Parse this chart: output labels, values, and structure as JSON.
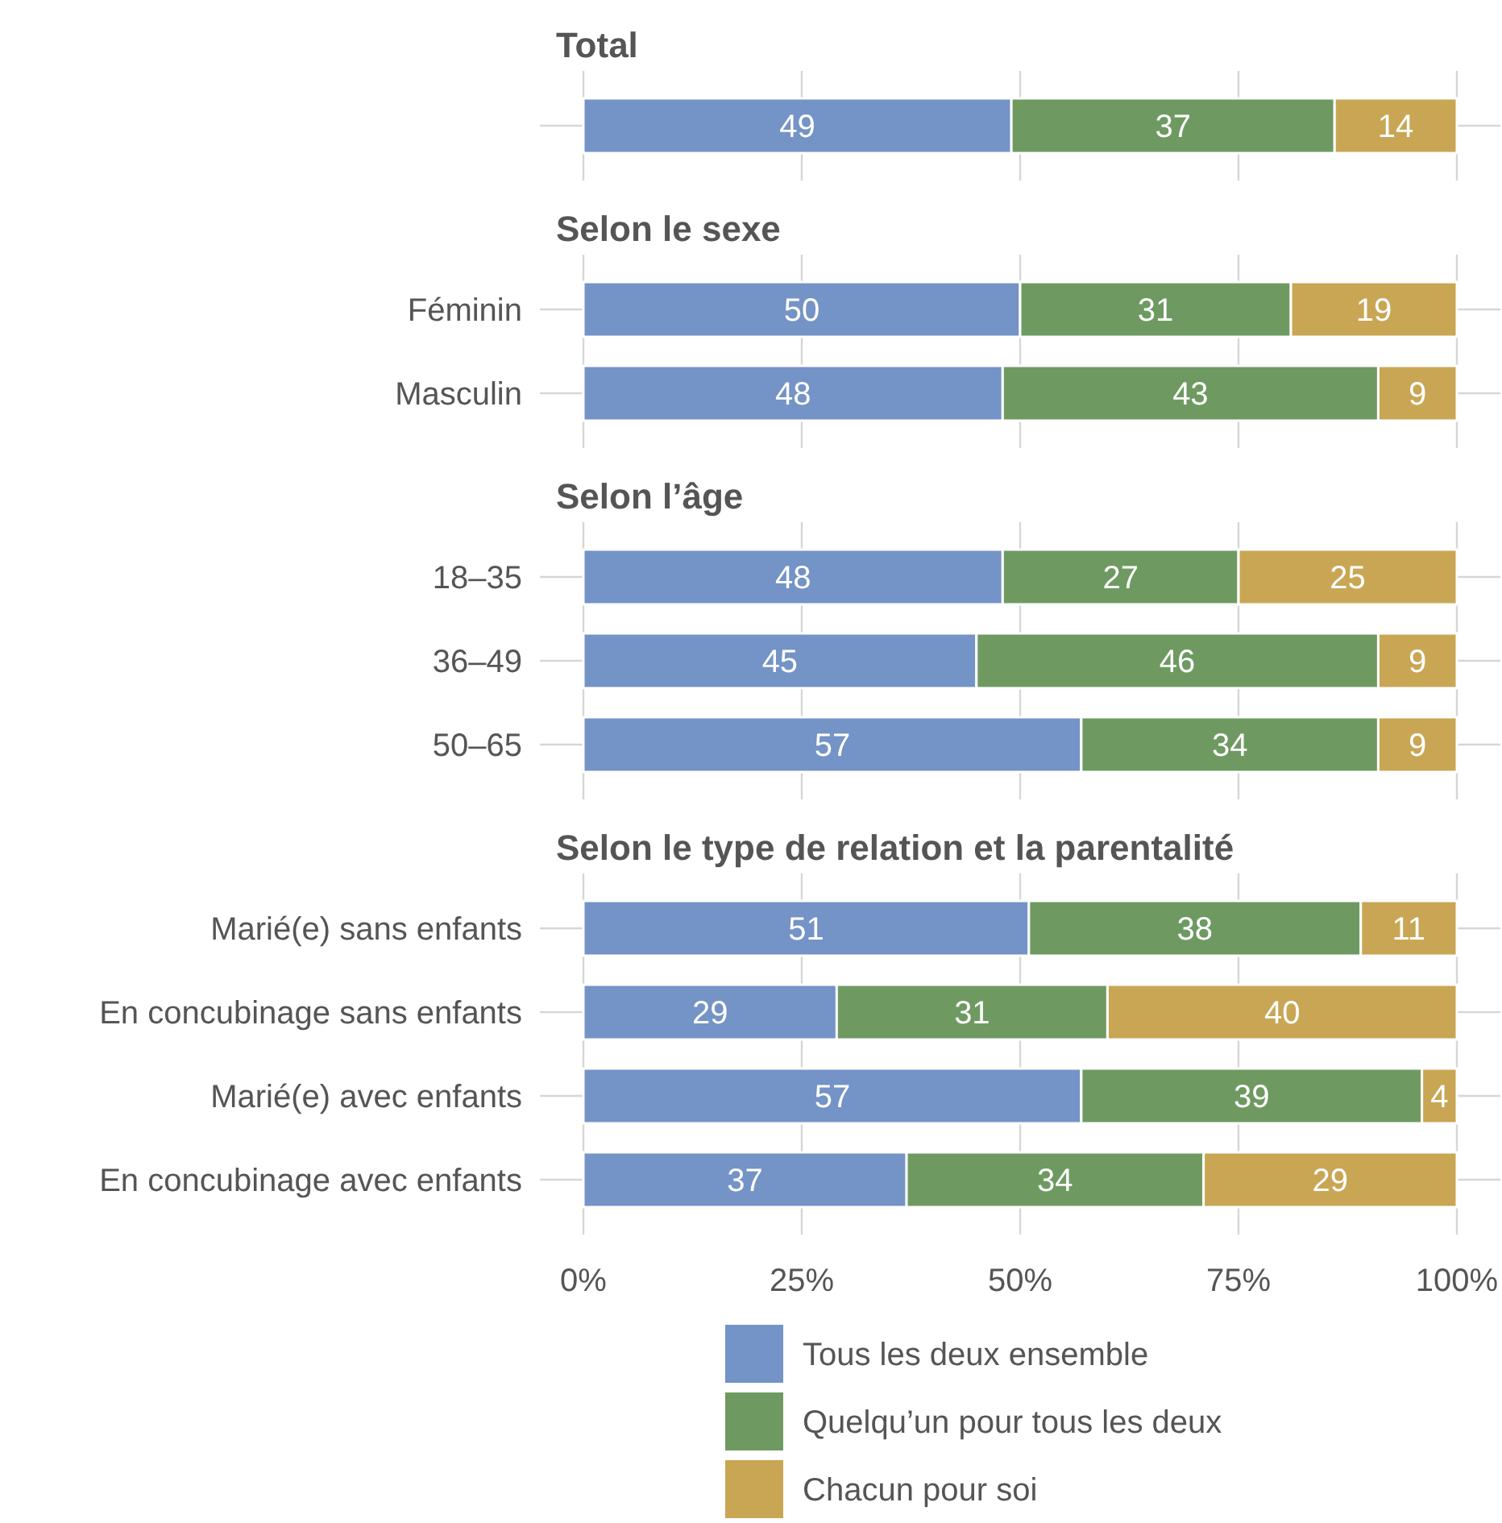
{
  "chart_data": [
    {
      "type": "bar",
      "orientation": "horizontal",
      "stacked": true,
      "title": "Total",
      "categories": [
        null
      ],
      "series": [
        {
          "color": "#7493c6",
          "values": [
            49
          ]
        },
        {
          "color": "#6e9a62",
          "values": [
            37
          ]
        },
        {
          "color": "#c9a654",
          "values": [
            14
          ]
        }
      ],
      "xlim": [
        0,
        100
      ],
      "xticks": [
        0,
        25,
        50,
        75,
        100
      ],
      "data_labels": true,
      "grid": true,
      "tick_labels": "y"
    },
    {
      "type": "bar",
      "orientation": "horizontal",
      "stacked": true,
      "title": "Selon le sexe",
      "categories": [
        "Féminin",
        "Masculin"
      ],
      "series": [
        {
          "color": "#7493c6",
          "values": [
            50,
            48
          ]
        },
        {
          "color": "#6e9a62",
          "values": [
            31,
            43
          ]
        },
        {
          "color": "#c9a654",
          "values": [
            19,
            9
          ]
        }
      ],
      "xlim": [
        0,
        100
      ],
      "xticks": [
        0,
        25,
        50,
        75,
        100
      ],
      "data_labels": true,
      "grid": true,
      "tick_labels": "y"
    },
    {
      "type": "bar",
      "orientation": "horizontal",
      "stacked": true,
      "title": "Selon l’âge",
      "categories": [
        "18–35",
        "36–49",
        "50–65"
      ],
      "series": [
        {
          "color": "#7493c6",
          "values": [
            48,
            45,
            57
          ]
        },
        {
          "color": "#6e9a62",
          "values": [
            27,
            46,
            34
          ]
        },
        {
          "color": "#c9a654",
          "values": [
            25,
            9,
            9
          ]
        }
      ],
      "xlim": [
        0,
        100
      ],
      "xticks": [
        0,
        25,
        50,
        75,
        100
      ],
      "data_labels": true,
      "grid": true,
      "tick_labels": "y"
    },
    {
      "type": "bar",
      "orientation": "horizontal",
      "stacked": true,
      "title": "Selon le type de relation et la parentalité",
      "categories": [
        "Marié(e) sans enfants",
        "En concubinage sans enfants",
        "Marié(e) avec enfants",
        "En concubinage avec enfants"
      ],
      "series": [
        {
          "name": "Tous les deux ensemble",
          "color": "#7493c6",
          "values": [
            51,
            29,
            57,
            37
          ]
        },
        {
          "name": "Quelqu’un pour tous les deux",
          "color": "#6e9a62",
          "values": [
            38,
            31,
            39,
            34
          ]
        },
        {
          "name": "Chacun pour soi",
          "color": "#c9a654",
          "values": [
            11,
            40,
            4,
            29
          ]
        }
      ],
      "xlim": [
        0,
        100
      ],
      "xticks": [
        {
          "value": 0,
          "label": "0%"
        },
        {
          "value": 25,
          "label": "25%"
        },
        {
          "value": 50,
          "label": "50%"
        },
        {
          "value": 75,
          "label": "75%"
        },
        {
          "value": 100,
          "label": "100%"
        }
      ],
      "data_labels": true,
      "grid": true,
      "legend": "bottom"
    }
  ]
}
